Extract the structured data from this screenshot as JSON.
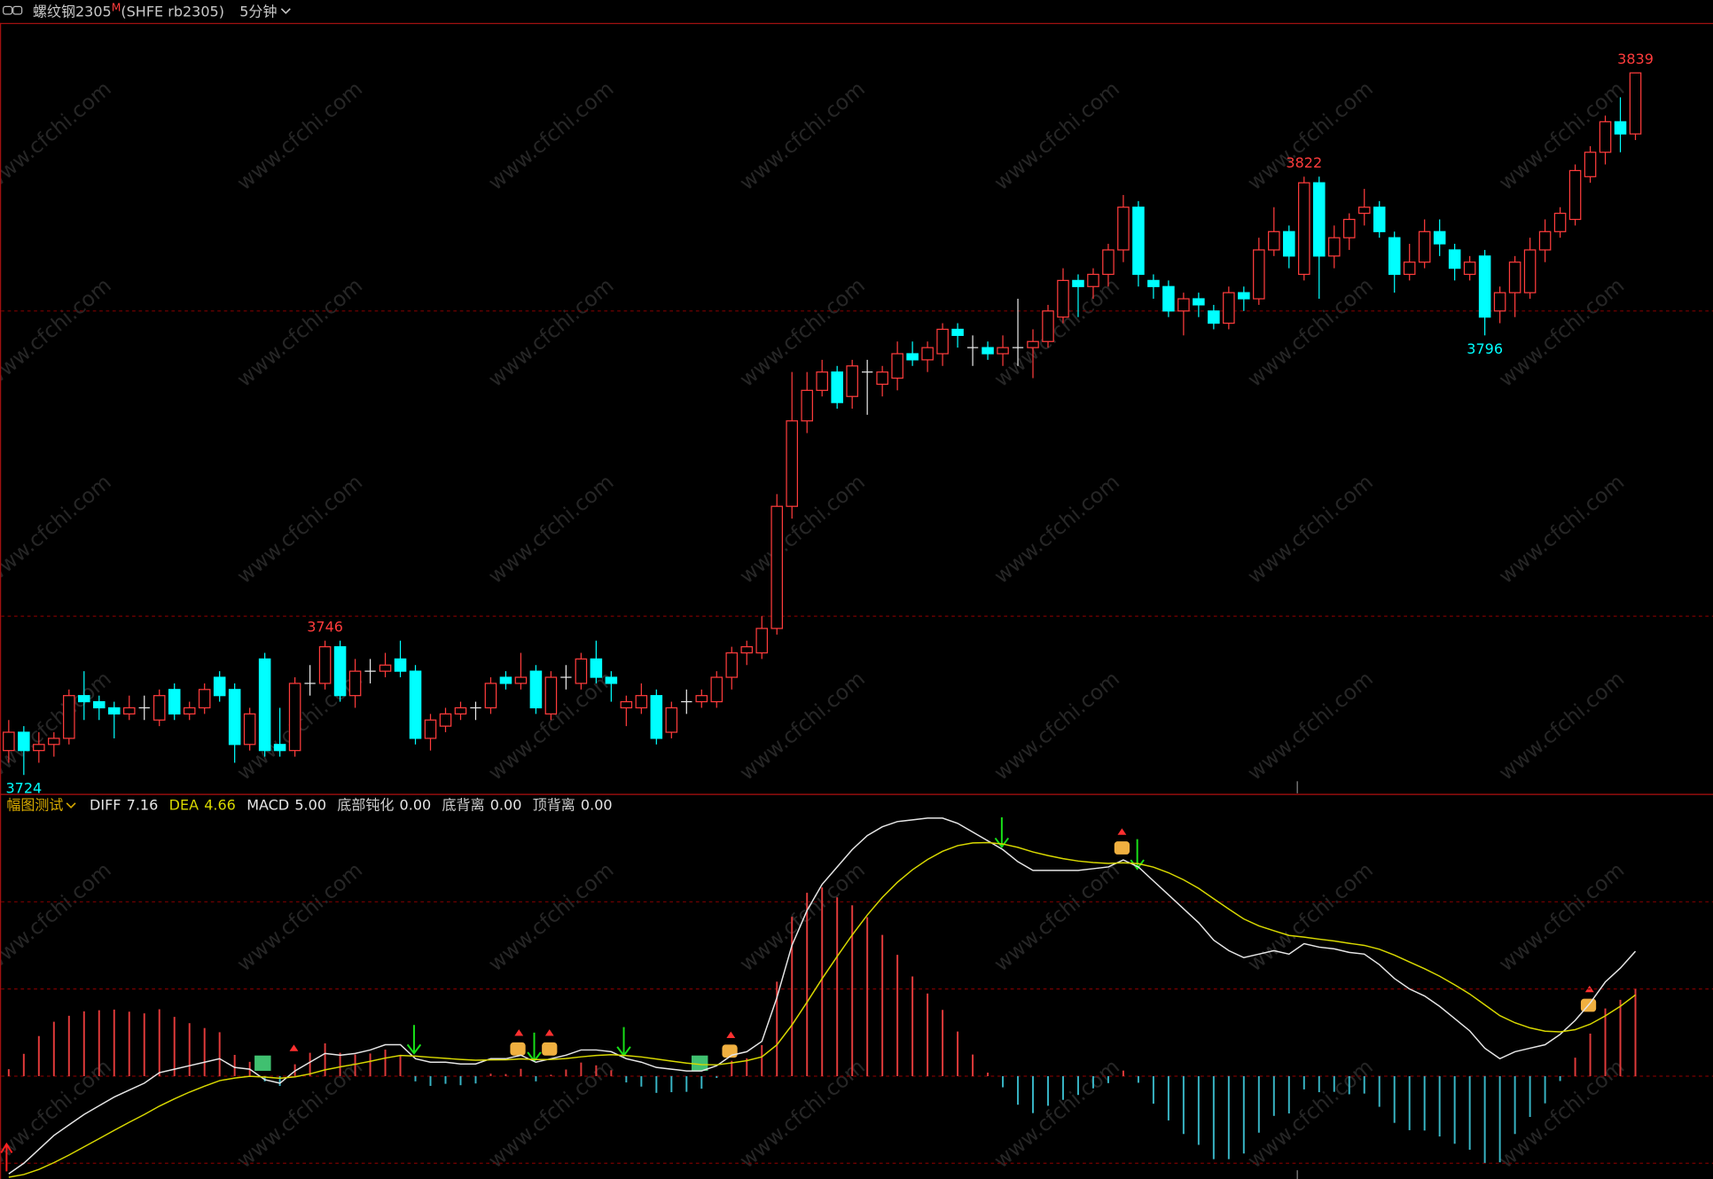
{
  "watermark": "www.cfchi.com",
  "chart_data": [
    {
      "type": "candlestick",
      "title": "螺纹钢2305",
      "title_mark": "M",
      "subtitle": "(SHFE rb2305)",
      "period": "5分钟",
      "ylim": [
        3721,
        3847
      ],
      "grid_lines": [
        3750,
        3800
      ],
      "up_color": "#ff3c3c",
      "down_color": "#00ffff",
      "flat_color": "#e8e8e8",
      "high_labels": [
        21,
        86,
        108
      ],
      "low_labels": [
        1,
        98
      ],
      "open": [
        3728,
        3731,
        3728,
        3729,
        3730,
        3737,
        3736,
        3735,
        3734,
        3735,
        3733,
        3738,
        3734,
        3735,
        3740,
        3738,
        3729,
        3743,
        3729,
        3728,
        3739,
        3739,
        3745,
        3737,
        3741,
        3741,
        3743,
        3741,
        3730,
        3732,
        3734,
        3735,
        3735,
        3740,
        3739,
        3741,
        3734,
        3740,
        3739,
        3743,
        3740,
        3735,
        3735,
        3737,
        3731,
        3736,
        3736,
        3736,
        3740,
        3744,
        3744,
        3748,
        3768,
        3782,
        3787,
        3790,
        3786,
        3790,
        3788,
        3789,
        3793,
        3792,
        3793,
        3797,
        3794,
        3794,
        3793,
        3794,
        3794,
        3795,
        3799,
        3805,
        3804,
        3806,
        3810,
        3817,
        3805,
        3804,
        3800,
        3802,
        3800,
        3798,
        3803,
        3802,
        3810,
        3813,
        3806,
        3821,
        3809,
        3812,
        3816,
        3817,
        3812,
        3806,
        3808,
        3813,
        3810,
        3806,
        3809,
        3800,
        3803,
        3803,
        3810,
        3813,
        3815,
        3822,
        3826,
        3831,
        3829
      ],
      "high": [
        3733,
        3732,
        3731,
        3731,
        3738,
        3741,
        3737,
        3736,
        3737,
        3737,
        3738,
        3739,
        3736,
        3739,
        3741,
        3739,
        3735,
        3744,
        3735,
        3740,
        3742,
        3746,
        3746,
        3743,
        3743,
        3744,
        3746,
        3742,
        3734,
        3735,
        3736,
        3736,
        3740,
        3741,
        3744,
        3742,
        3741,
        3742,
        3744,
        3746,
        3741,
        3737,
        3739,
        3738,
        3736,
        3738,
        3738,
        3741,
        3745,
        3746,
        3750,
        3770,
        3790,
        3790,
        3792,
        3791,
        3792,
        3792,
        3791,
        3795,
        3795,
        3795,
        3798,
        3798,
        3796,
        3795,
        3796,
        3802,
        3797,
        3801,
        3807,
        3806,
        3807,
        3811,
        3819,
        3818,
        3806,
        3805,
        3803,
        3803,
        3801,
        3804,
        3804,
        3812,
        3817,
        3814,
        3822,
        3822,
        3814,
        3816,
        3820,
        3818,
        3813,
        3811,
        3815,
        3815,
        3811,
        3809,
        3810,
        3804,
        3809,
        3812,
        3815,
        3817,
        3824,
        3827,
        3832,
        3835,
        3839
      ],
      "low": [
        3726,
        3724,
        3726,
        3727,
        3729,
        3733,
        3733,
        3730,
        3733,
        3733,
        3732,
        3733,
        3733,
        3734,
        3736,
        3726,
        3728,
        3727,
        3727,
        3727,
        3737,
        3738,
        3736,
        3735,
        3739,
        3740,
        3740,
        3729,
        3728,
        3731,
        3733,
        3733,
        3734,
        3738,
        3738,
        3734,
        3733,
        3738,
        3738,
        3739,
        3736,
        3732,
        3734,
        3729,
        3730,
        3734,
        3735,
        3735,
        3738,
        3742,
        3743,
        3747,
        3766,
        3780,
        3786,
        3784,
        3784,
        3783,
        3786,
        3787,
        3791,
        3790,
        3791,
        3794,
        3791,
        3792,
        3791,
        3791,
        3789,
        3794,
        3798,
        3799,
        3802,
        3804,
        3808,
        3804,
        3802,
        3799,
        3796,
        3799,
        3797,
        3797,
        3800,
        3801,
        3809,
        3807,
        3805,
        3802,
        3807,
        3810,
        3814,
        3812,
        3803,
        3805,
        3807,
        3809,
        3805,
        3805,
        3796,
        3798,
        3799,
        3802,
        3808,
        3812,
        3814,
        3821,
        3824,
        3826,
        3828
      ],
      "close": [
        3731,
        3728,
        3729,
        3730,
        3737,
        3736,
        3735,
        3734,
        3735,
        3735,
        3737,
        3734,
        3735,
        3738,
        3737,
        3729,
        3734,
        3728,
        3728,
        3739,
        3739,
        3745,
        3737,
        3741,
        3741,
        3742,
        3741,
        3730,
        3733,
        3734,
        3735,
        3735,
        3739,
        3739,
        3740,
        3735,
        3740,
        3740,
        3743,
        3740,
        3739,
        3736,
        3737,
        3730,
        3735,
        3736,
        3737,
        3740,
        3744,
        3745,
        3748,
        3768,
        3782,
        3787,
        3790,
        3785,
        3791,
        3790,
        3790,
        3793,
        3792,
        3794,
        3797,
        3796,
        3794,
        3793,
        3794,
        3794,
        3795,
        3800,
        3805,
        3804,
        3806,
        3810,
        3817,
        3806,
        3804,
        3800,
        3802,
        3801,
        3798,
        3803,
        3802,
        3810,
        3813,
        3809,
        3821,
        3809,
        3812,
        3815,
        3817,
        3813,
        3806,
        3808,
        3813,
        3811,
        3807,
        3808,
        3799,
        3803,
        3808,
        3810,
        3813,
        3816,
        3823,
        3826,
        3831,
        3829,
        3839
      ]
    },
    {
      "type": "macd",
      "title": "幅图测试",
      "ylim": [
        -5.9,
        16.1
      ],
      "grid_lines": [
        -5,
        0,
        5,
        10
      ],
      "readouts": [
        "7.16",
        "4.66",
        "5.00"
      ],
      "flags": [
        {
          "name": "底部钝化",
          "value": "0.00"
        },
        {
          "name": "底背离",
          "value": "0.00"
        },
        {
          "name": "顶背离",
          "value": "0.00"
        }
      ],
      "series": [
        {
          "name": "DIFF",
          "kind": "line",
          "color": "#e6e6e6",
          "values": [
            -5.6,
            -5.0,
            -4.2,
            -3.4,
            -2.8,
            -2.2,
            -1.7,
            -1.2,
            -0.8,
            -0.4,
            0.2,
            0.4,
            0.6,
            0.8,
            1.0,
            0.5,
            0.4,
            -0.2,
            -0.4,
            0.3,
            0.8,
            1.3,
            1.2,
            1.3,
            1.5,
            1.8,
            1.8,
            1.0,
            0.8,
            0.8,
            0.7,
            0.7,
            1.0,
            1.0,
            1.2,
            0.8,
            1.0,
            1.2,
            1.5,
            1.5,
            1.4,
            1.0,
            0.8,
            0.5,
            0.4,
            0.3,
            0.3,
            0.6,
            1.2,
            1.4,
            2.0,
            4.5,
            7.5,
            9.5,
            11.0,
            12.0,
            13.0,
            13.8,
            14.3,
            14.6,
            14.7,
            14.8,
            14.8,
            14.5,
            14.0,
            13.5,
            13.0,
            12.3,
            11.8,
            11.8,
            11.8,
            11.8,
            11.9,
            12.0,
            12.4,
            12.0,
            11.2,
            10.4,
            9.6,
            8.8,
            7.8,
            7.2,
            6.8,
            7.0,
            7.2,
            7.0,
            7.6,
            7.4,
            7.3,
            7.1,
            7.0,
            6.4,
            5.6,
            5.0,
            4.6,
            4.0,
            3.3,
            2.6,
            1.6,
            1.0,
            1.4,
            1.6,
            1.8,
            2.4,
            3.2,
            4.2,
            5.4,
            6.2,
            7.16
          ]
        },
        {
          "name": "DEA",
          "kind": "line",
          "color": "#d8d800",
          "values": [
            -5.8,
            -5.64,
            -5.35,
            -4.96,
            -4.53,
            -4.06,
            -3.59,
            -3.11,
            -2.65,
            -2.2,
            -1.72,
            -1.3,
            -0.92,
            -0.58,
            -0.26,
            -0.11,
            -0.01,
            -0.05,
            -0.12,
            -0.04,
            0.13,
            0.36,
            0.53,
            0.68,
            0.85,
            1.04,
            1.19,
            1.15,
            1.08,
            1.02,
            0.96,
            0.91,
            0.93,
            0.94,
            0.99,
            0.95,
            0.96,
            1.01,
            1.11,
            1.19,
            1.23,
            1.18,
            1.1,
            0.98,
            0.86,
            0.75,
            0.66,
            0.65,
            0.76,
            0.89,
            1.11,
            1.79,
            2.93,
            4.24,
            5.59,
            6.87,
            8.1,
            9.24,
            10.25,
            11.12,
            11.84,
            12.43,
            12.9,
            13.22,
            13.38,
            13.4,
            13.32,
            13.12,
            12.86,
            12.65,
            12.48,
            12.34,
            12.25,
            12.2,
            12.24,
            12.19,
            11.99,
            11.67,
            11.26,
            10.77,
            10.18,
            9.58,
            9.02,
            8.62,
            8.34,
            8.07,
            7.98,
            7.86,
            7.75,
            7.62,
            7.5,
            7.28,
            6.94,
            6.55,
            6.16,
            5.73,
            5.24,
            4.71,
            4.09,
            3.47,
            3.06,
            2.77,
            2.58,
            2.54,
            2.67,
            2.98,
            3.46,
            4.01,
            4.66
          ]
        },
        {
          "name": "MACD",
          "kind": "bar",
          "color": "#e03a3a",
          "negative_color": "#38b4c4",
          "values": [
            0.4,
            1.28,
            2.3,
            3.12,
            3.46,
            3.72,
            3.78,
            3.82,
            3.7,
            3.6,
            3.84,
            3.4,
            3.04,
            2.76,
            2.52,
            1.22,
            0.82,
            -0.3,
            -0.56,
            0.68,
            1.34,
            1.88,
            1.34,
            1.24,
            1.3,
            1.52,
            1.22,
            -0.3,
            -0.56,
            -0.44,
            -0.52,
            -0.42,
            0.14,
            0.12,
            0.42,
            -0.3,
            0.08,
            0.38,
            0.78,
            0.62,
            0.34,
            -0.36,
            -0.6,
            -0.96,
            -0.92,
            -0.9,
            -0.72,
            -0.1,
            0.88,
            1.02,
            1.78,
            5.42,
            9.14,
            10.52,
            10.82,
            10.26,
            9.8,
            9.12,
            8.1,
            6.96,
            5.72,
            4.74,
            3.8,
            2.56,
            1.24,
            0.2,
            -0.64,
            -1.64,
            -2.12,
            -1.7,
            -1.36,
            -1.08,
            -0.7,
            -0.4,
            0.32,
            -0.38,
            -1.58,
            -2.54,
            -3.32,
            -3.94,
            -4.76,
            -4.76,
            -4.44,
            -3.24,
            -2.28,
            -2.14,
            -0.76,
            -0.92,
            -0.9,
            -1.04,
            -1.0,
            -1.76,
            -2.68,
            -3.1,
            -3.12,
            -3.46,
            -3.88,
            -4.22,
            -4.98,
            -4.94,
            -3.32,
            -2.34,
            -1.56,
            -0.28,
            1.06,
            2.44,
            3.88,
            4.38,
            5.0
          ]
        }
      ]
    }
  ]
}
